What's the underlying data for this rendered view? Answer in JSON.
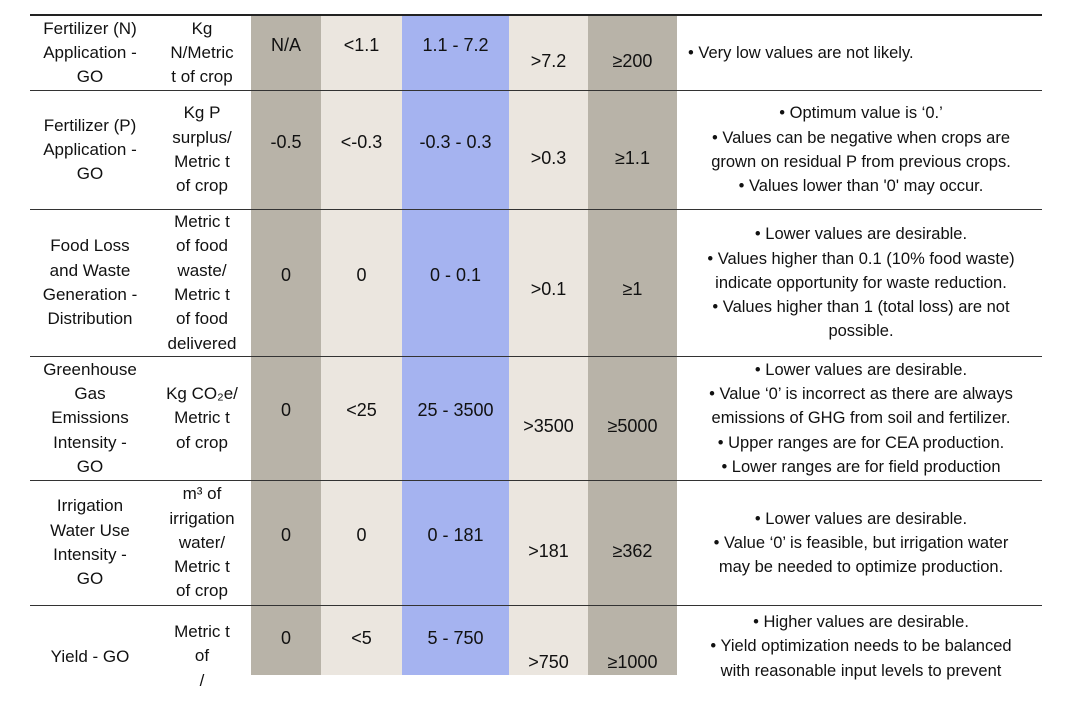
{
  "rows": [
    {
      "name": [
        "Fertilizer (N)",
        "Application -",
        "GO"
      ],
      "unit": [
        "Kg",
        "N/Metric",
        "t of crop"
      ],
      "v1": "N/A",
      "v2": "<1.1",
      "v3": "1.1 - 7.2",
      "v4": ">7.2",
      "v5": "≥200",
      "notes": [
        "• Very low values are not likely."
      ]
    },
    {
      "name": [
        "Fertilizer (P)",
        "Application -",
        "GO"
      ],
      "unit": [
        "Kg P",
        "surplus/",
        "Metric t",
        "of crop"
      ],
      "v1": "-0.5",
      "v2": "<-0.3",
      "v3": "-0.3 - 0.3",
      "v4": ">0.3",
      "v5": "≥1.1",
      "notes": [
        "• Optimum value is ‘0.’",
        "• Values can be negative when crops are",
        "grown on residual P from previous crops.",
        "• Values lower than '0' may occur."
      ]
    },
    {
      "name": [
        "Food Loss",
        "and Waste",
        "Generation -",
        "Distribution"
      ],
      "unit": [
        "Metric t",
        "of food",
        "waste/",
        "Metric t",
        "of food",
        "delivered"
      ],
      "v1": "0",
      "v2": "0",
      "v3": "0 - 0.1",
      "v4": ">0.1",
      "v5": "≥1",
      "notes": [
        "• Lower values are desirable.",
        "• Values higher than 0.1 (10% food waste)",
        "indicate opportunity for waste reduction.",
        "• Values higher than 1 (total loss) are not",
        "possible."
      ]
    },
    {
      "name": [
        "Greenhouse",
        "Gas",
        "Emissions",
        "Intensity -",
        "GO"
      ],
      "unit": [
        "Kg CO₂e/",
        "Metric t",
        "of crop"
      ],
      "v1": "0",
      "v2": "<25",
      "v3": "25 - 3500",
      "v4": ">3500",
      "v5": "≥5000",
      "notes": [
        "• Lower values are desirable.",
        "• Value ‘0’ is incorrect as there are always",
        "emissions of GHG from soil and fertilizer.",
        "• Upper ranges are for CEA production.",
        "• Lower ranges are for field production"
      ]
    },
    {
      "name": [
        "Irrigation",
        "Water Use",
        "Intensity -",
        "GO"
      ],
      "unit": [
        "m³ of",
        "irrigation",
        "water/",
        "Metric t",
        "of crop"
      ],
      "v1": "0",
      "v2": "0",
      "v3": "0 - 181",
      "v4": ">181",
      "v5": "≥362",
      "notes": [
        "• Lower values are desirable.",
        "• Value ‘0’ is feasible, but irrigation water",
        "may be needed to optimize production."
      ]
    },
    {
      "name": [
        "Yield - GO"
      ],
      "unit": [
        "Metric t",
        "of",
        "/"
      ],
      "v1": "0",
      "v2": "<5",
      "v3": "5 - 750",
      "v4": ">750",
      "v5": "≥1000",
      "notes": [
        "• Higher values are desirable.",
        "• Yield optimization needs to be balanced",
        "with reasonable input levels to prevent"
      ]
    }
  ]
}
